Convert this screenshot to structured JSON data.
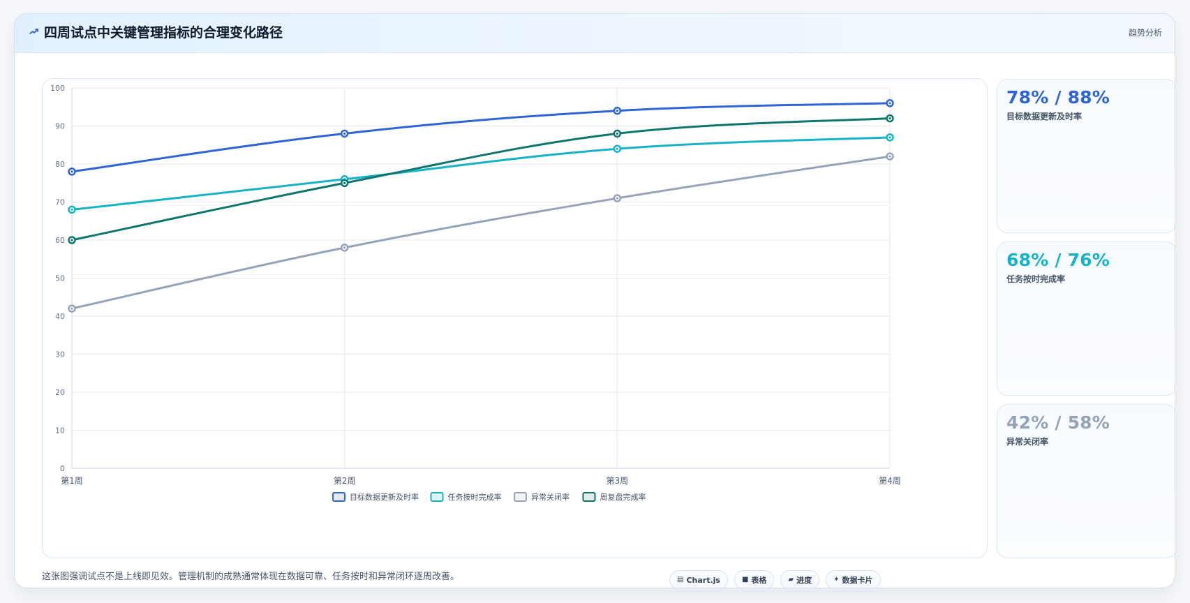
{
  "header": {
    "title": "四周试点中关键管理指标的合理变化路径",
    "trend_label": "趋势分析"
  },
  "chart_data": {
    "type": "line",
    "categories": [
      "第1周",
      "第2周",
      "第3周",
      "第4周"
    ],
    "ylim": [
      0,
      100
    ],
    "yticks": [
      0,
      10,
      20,
      30,
      40,
      50,
      60,
      70,
      80,
      90,
      100
    ],
    "legend_position": "bottom",
    "grid": true,
    "series": [
      {
        "name": "目标数据更新及时率",
        "values": [
          78,
          88,
          94,
          96
        ],
        "color": "#2f64d6"
      },
      {
        "name": "任务按时完成率",
        "values": [
          68,
          76,
          84,
          87
        ],
        "color": "#16b3c8"
      },
      {
        "name": "异常关闭率",
        "values": [
          42,
          58,
          71,
          82
        ],
        "color": "#94a3b8"
      },
      {
        "name": "周复盘完成率",
        "values": [
          60,
          75,
          88,
          92
        ],
        "color": "#0f766e"
      }
    ]
  },
  "cards": [
    {
      "value": "78% / 88%",
      "label": "目标数据更新及时率",
      "color": "#2f64d6"
    },
    {
      "value": "68% / 76%",
      "label": "任务按时完成率",
      "color": "#16b3c8"
    },
    {
      "value": "42% / 58%",
      "label": "异常关闭率",
      "color": "#94a3b8"
    }
  ],
  "footer": {
    "text": "这张图强调试点不是上线即见效。管理机制的成熟通常体现在数据可靠、任务按时和异常闭环逐周改善。",
    "buttons": [
      {
        "label": "Chart.js",
        "icon": "chart-icon"
      },
      {
        "label": "表格",
        "icon": "table-icon"
      },
      {
        "label": "进度",
        "icon": "progress-icon"
      },
      {
        "label": "数据卡片",
        "icon": "card-icon"
      }
    ]
  }
}
